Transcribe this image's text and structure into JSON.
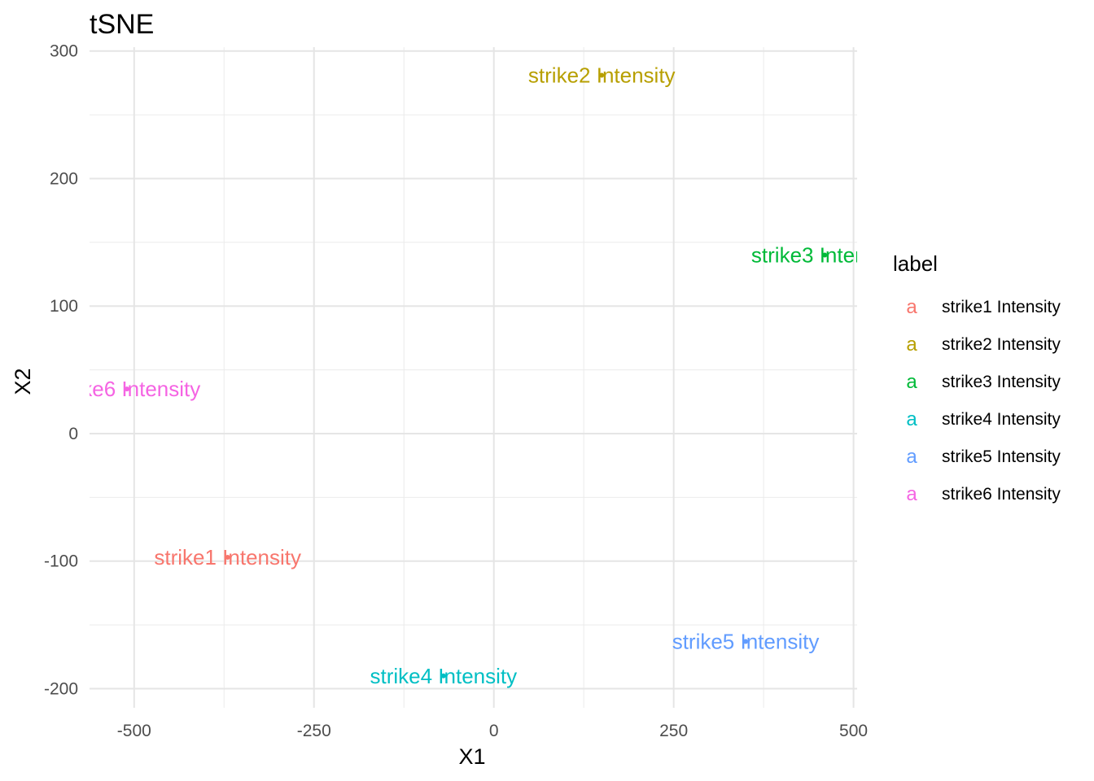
{
  "chart_data": {
    "type": "scatter",
    "title": "tSNE",
    "xlabel": "X1",
    "ylabel": "X2",
    "xlim": [
      -562,
      505
    ],
    "ylim": [
      -215,
      303
    ],
    "x_ticks": [
      -500,
      -250,
      0,
      250,
      500
    ],
    "x_tick_labels": [
      "-500",
      "-250",
      "0",
      "250",
      "500"
    ],
    "y_ticks": [
      300,
      200,
      100,
      0,
      -100,
      -200
    ],
    "y_tick_labels": [
      "300",
      "200",
      "100",
      "0",
      "-100",
      "-200"
    ],
    "grid": true,
    "legend_title": "label",
    "legend_position": "right",
    "legend_key_glyph": "a",
    "series": [
      {
        "name": "strike1 Intensity",
        "color": "#F8766D",
        "x": -370,
        "y": -97
      },
      {
        "name": "strike2 Intensity",
        "color": "#B79F00",
        "x": 150,
        "y": 281
      },
      {
        "name": "strike3 Intensity",
        "color": "#00BA38",
        "x": 460,
        "y": 140
      },
      {
        "name": "strike4 Intensity",
        "color": "#00BFC4",
        "x": -70,
        "y": -190
      },
      {
        "name": "strike5 Intensity",
        "color": "#619CFF",
        "x": 350,
        "y": -163
      },
      {
        "name": "strike6 Intensity",
        "color": "#F564E3",
        "x": -510,
        "y": 35
      }
    ]
  }
}
